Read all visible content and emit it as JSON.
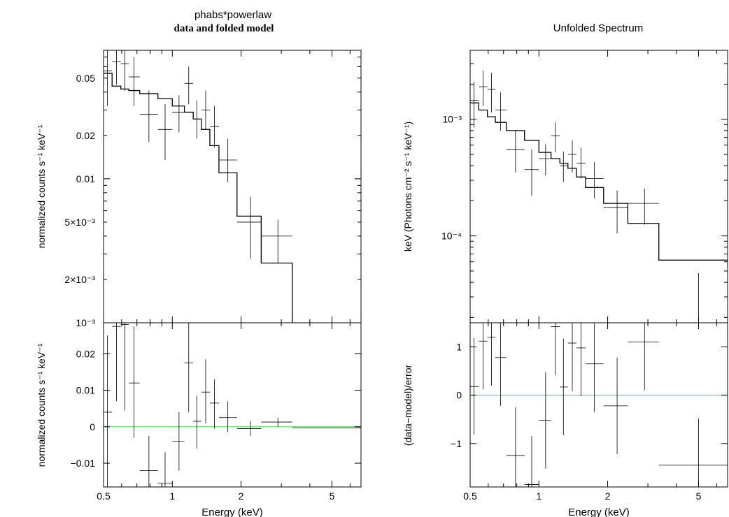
{
  "figure": {
    "left_title": "phabs*powerlaw",
    "left_subtitle": "data and folded model",
    "right_title": "Unfolded Spectrum"
  },
  "chart_data": [
    {
      "type": "scatter",
      "panel": "left-top",
      "ylabel": "normalized counts s⁻¹ keV⁻¹",
      "xlog": true,
      "ylog": true,
      "xlim": [
        0.5,
        6.7
      ],
      "ylim": [
        0.001,
        0.078
      ],
      "xticks": [
        {
          "v": 0.5,
          "t": "0.5"
        },
        {
          "v": 1,
          "t": "1"
        },
        {
          "v": 2,
          "t": "2"
        },
        {
          "v": 5,
          "t": "5"
        }
      ],
      "yticks": [
        {
          "v": 0.001,
          "t": "10⁻³"
        },
        {
          "v": 0.002,
          "t": "2×10⁻³"
        },
        {
          "v": 0.005,
          "t": "5×10⁻³"
        },
        {
          "v": 0.01,
          "t": "0.01"
        },
        {
          "v": 0.02,
          "t": "0.02"
        },
        {
          "v": 0.05,
          "t": "0.05"
        }
      ],
      "points": [
        {
          "x": 0.52,
          "xlo": 0.5,
          "xhi": 0.545,
          "y": 0.056,
          "ylo": 0.032,
          "yhi": 0.078
        },
        {
          "x": 0.57,
          "xlo": 0.545,
          "xhi": 0.595,
          "y": 0.065,
          "ylo": 0.045,
          "yhi": 0.078
        },
        {
          "x": 0.62,
          "xlo": 0.595,
          "xhi": 0.645,
          "y": 0.063,
          "ylo": 0.041,
          "yhi": 0.078
        },
        {
          "x": 0.68,
          "xlo": 0.645,
          "xhi": 0.72,
          "y": 0.051,
          "ylo": 0.032,
          "yhi": 0.07
        },
        {
          "x": 0.79,
          "xlo": 0.72,
          "xhi": 0.865,
          "y": 0.028,
          "ylo": 0.018,
          "yhi": 0.041
        },
        {
          "x": 0.93,
          "xlo": 0.865,
          "xhi": 1.0,
          "y": 0.022,
          "ylo": 0.0135,
          "yhi": 0.033
        },
        {
          "x": 1.07,
          "xlo": 1.0,
          "xhi": 1.13,
          "y": 0.029,
          "ylo": 0.021,
          "yhi": 0.038
        },
        {
          "x": 1.18,
          "xlo": 1.13,
          "xhi": 1.235,
          "y": 0.046,
          "ylo": 0.033,
          "yhi": 0.06
        },
        {
          "x": 1.28,
          "xlo": 1.235,
          "xhi": 1.34,
          "y": 0.026,
          "ylo": 0.019,
          "yhi": 0.035
        },
        {
          "x": 1.4,
          "xlo": 1.34,
          "xhi": 1.46,
          "y": 0.03,
          "ylo": 0.022,
          "yhi": 0.041
        },
        {
          "x": 1.53,
          "xlo": 1.46,
          "xhi": 1.6,
          "y": 0.023,
          "ylo": 0.0165,
          "yhi": 0.032
        },
        {
          "x": 1.75,
          "xlo": 1.6,
          "xhi": 1.92,
          "y": 0.0135,
          "ylo": 0.0095,
          "yhi": 0.019
        },
        {
          "x": 2.2,
          "xlo": 1.92,
          "xhi": 2.45,
          "y": 0.005,
          "ylo": 0.0028,
          "yhi": 0.0075
        },
        {
          "x": 2.9,
          "xlo": 2.45,
          "xhi": 3.35,
          "y": 0.004,
          "ylo": 0.0026,
          "yhi": 0.0052
        }
      ],
      "model_edges": [
        0.5,
        0.545,
        0.595,
        0.645,
        0.72,
        0.865,
        1.0,
        1.13,
        1.235,
        1.34,
        1.46,
        1.6,
        1.92,
        2.45,
        3.35
      ],
      "model_values": [
        0.054,
        0.044,
        0.042,
        0.041,
        0.039,
        0.036,
        0.032,
        0.029,
        0.026,
        0.022,
        0.017,
        0.011,
        0.0055,
        0.0026
      ]
    },
    {
      "type": "scatter",
      "panel": "left-bottom",
      "xlabel": "Energy (keV)",
      "ylabel": "normalized counts s⁻¹ keV⁻¹",
      "xlog": true,
      "xlim": [
        0.5,
        6.7
      ],
      "ylim": [
        -0.0165,
        0.0285
      ],
      "xticks": [
        {
          "v": 0.5,
          "t": "0.5"
        },
        {
          "v": 1,
          "t": "1"
        },
        {
          "v": 2,
          "t": "2"
        },
        {
          "v": 5,
          "t": "5"
        }
      ],
      "yticks": [
        {
          "v": -0.01,
          "t": "−0.01"
        },
        {
          "v": 0,
          "t": "0"
        },
        {
          "v": 0.01,
          "t": "0.01"
        },
        {
          "v": 0.02,
          "t": "0.02"
        }
      ],
      "zero_line": 0,
      "zero_color": "#55dd55",
      "points": [
        {
          "x": 0.52,
          "xlo": 0.5,
          "xhi": 0.545,
          "y": 0.004,
          "ylo": -0.0165,
          "yhi": 0.025
        },
        {
          "x": 0.57,
          "xlo": 0.545,
          "xhi": 0.595,
          "y": 0.0275,
          "ylo": 0.007,
          "yhi": 0.0285
        },
        {
          "x": 0.62,
          "xlo": 0.595,
          "xhi": 0.645,
          "y": 0.028,
          "ylo": 0.0045,
          "yhi": 0.0285
        },
        {
          "x": 0.68,
          "xlo": 0.645,
          "xhi": 0.72,
          "y": 0.012,
          "ylo": -0.003,
          "yhi": 0.0275
        },
        {
          "x": 0.79,
          "xlo": 0.72,
          "xhi": 0.865,
          "y": -0.012,
          "ylo": -0.0165,
          "yhi": -0.0025
        },
        {
          "x": 0.93,
          "xlo": 0.865,
          "xhi": 1.0,
          "y": -0.0155,
          "ylo": -0.0165,
          "yhi": -0.007
        },
        {
          "x": 1.07,
          "xlo": 1.0,
          "xhi": 1.13,
          "y": -0.004,
          "ylo": -0.012,
          "yhi": 0.004
        },
        {
          "x": 1.18,
          "xlo": 1.13,
          "xhi": 1.235,
          "y": 0.0175,
          "ylo": 0.004,
          "yhi": 0.0285
        },
        {
          "x": 1.28,
          "xlo": 1.235,
          "xhi": 1.34,
          "y": 0.0015,
          "ylo": -0.006,
          "yhi": 0.0085
        },
        {
          "x": 1.4,
          "xlo": 1.34,
          "xhi": 1.46,
          "y": 0.0095,
          "ylo": 0.001,
          "yhi": 0.0185
        },
        {
          "x": 1.53,
          "xlo": 1.46,
          "xhi": 1.6,
          "y": 0.0065,
          "ylo": -0.0005,
          "yhi": 0.013
        },
        {
          "x": 1.75,
          "xlo": 1.6,
          "xhi": 1.92,
          "y": 0.0025,
          "ylo": -0.0015,
          "yhi": 0.007
        },
        {
          "x": 2.2,
          "xlo": 1.92,
          "xhi": 2.45,
          "y": -0.0005,
          "ylo": -0.0025,
          "yhi": 0.0015
        },
        {
          "x": 2.9,
          "xlo": 2.45,
          "xhi": 3.35,
          "y": 0.0013,
          "ylo": 0.0,
          "yhi": 0.0025
        },
        {
          "x": 5.0,
          "xlo": 3.35,
          "xhi": 6.7,
          "y": -0.0003,
          "ylo": -0.0003,
          "yhi": -0.0003
        }
      ]
    },
    {
      "type": "scatter",
      "panel": "right-top",
      "title": "Unfolded Spectrum",
      "ylabel": "keV (Photons cm⁻² s⁻¹ keV⁻¹)",
      "xlog": true,
      "ylog": true,
      "xlim": [
        0.5,
        6.7
      ],
      "ylim": [
        1.8e-05,
        0.0039
      ],
      "xticks": [
        {
          "v": 0.5,
          "t": "0.5"
        },
        {
          "v": 1,
          "t": "1"
        },
        {
          "v": 2,
          "t": "2"
        },
        {
          "v": 5,
          "t": "5"
        }
      ],
      "yticks": [
        {
          "v": 0.0001,
          "t": "10⁻⁴"
        },
        {
          "v": 0.001,
          "t": "10⁻³"
        }
      ],
      "points": [
        {
          "x": 0.52,
          "xlo": 0.5,
          "xhi": 0.545,
          "y": 0.00145,
          "ylo": 0.00085,
          "yhi": 0.0021
        },
        {
          "x": 0.57,
          "xlo": 0.545,
          "xhi": 0.595,
          "y": 0.0019,
          "ylo": 0.0013,
          "yhi": 0.0026
        },
        {
          "x": 0.62,
          "xlo": 0.595,
          "xhi": 0.645,
          "y": 0.0018,
          "ylo": 0.00115,
          "yhi": 0.0025
        },
        {
          "x": 0.68,
          "xlo": 0.645,
          "xhi": 0.72,
          "y": 0.0012,
          "ylo": 0.0008,
          "yhi": 0.0017
        },
        {
          "x": 0.79,
          "xlo": 0.72,
          "xhi": 0.865,
          "y": 0.00055,
          "ylo": 0.00035,
          "yhi": 0.0008
        },
        {
          "x": 0.93,
          "xlo": 0.865,
          "xhi": 1.0,
          "y": 0.00037,
          "ylo": 0.00022,
          "yhi": 0.00055
        },
        {
          "x": 1.07,
          "xlo": 1.0,
          "xhi": 1.13,
          "y": 0.00046,
          "ylo": 0.00033,
          "yhi": 0.00061
        },
        {
          "x": 1.18,
          "xlo": 1.13,
          "xhi": 1.235,
          "y": 0.00072,
          "ylo": 0.00052,
          "yhi": 0.00094
        },
        {
          "x": 1.28,
          "xlo": 1.235,
          "xhi": 1.34,
          "y": 0.0004,
          "ylo": 0.00029,
          "yhi": 0.00053
        },
        {
          "x": 1.4,
          "xlo": 1.34,
          "xhi": 1.46,
          "y": 0.0005,
          "ylo": 0.00035,
          "yhi": 0.00066
        },
        {
          "x": 1.53,
          "xlo": 1.46,
          "xhi": 1.6,
          "y": 0.00042,
          "ylo": 0.00031,
          "yhi": 0.00057
        },
        {
          "x": 1.75,
          "xlo": 1.6,
          "xhi": 1.92,
          "y": 0.00031,
          "ylo": 0.00021,
          "yhi": 0.00043
        },
        {
          "x": 2.2,
          "xlo": 1.92,
          "xhi": 2.45,
          "y": 0.000175,
          "ylo": 0.000105,
          "yhi": 0.000245
        },
        {
          "x": 2.9,
          "xlo": 2.45,
          "xhi": 3.35,
          "y": 0.00019,
          "ylo": 0.000125,
          "yhi": 0.000255
        },
        {
          "x": 5.0,
          "xlo": 5.0,
          "xhi": 5.0,
          "y": 1.8e-05,
          "ylo": 1.8e-05,
          "yhi": 4.8e-05
        }
      ],
      "model_edges": [
        0.5,
        0.545,
        0.595,
        0.645,
        0.72,
        0.865,
        1.0,
        1.13,
        1.235,
        1.34,
        1.46,
        1.6,
        1.92,
        2.45,
        3.35,
        6.7
      ],
      "model_values": [
        0.00138,
        0.0012,
        0.00105,
        0.00094,
        0.0008,
        0.00066,
        0.00052,
        0.00046,
        0.00042,
        0.00038,
        0.00032,
        0.00026,
        0.00019,
        0.000128,
        6.2e-05
      ]
    },
    {
      "type": "scatter",
      "panel": "right-bottom",
      "xlabel": "Energy (keV)",
      "ylabel": "(data−model)/error",
      "xlog": true,
      "xlim": [
        0.5,
        6.7
      ],
      "ylim": [
        -1.9,
        1.5
      ],
      "xticks": [
        {
          "v": 0.5,
          "t": "0.5"
        },
        {
          "v": 1,
          "t": "1"
        },
        {
          "v": 2,
          "t": "2"
        },
        {
          "v": 5,
          "t": "5"
        }
      ],
      "yticks": [
        {
          "v": -1,
          "t": "−1"
        },
        {
          "v": 0,
          "t": "0"
        },
        {
          "v": 1,
          "t": "1"
        }
      ],
      "zero_line": 0,
      "zero_color": "#55dd55",
      "points": [
        {
          "x": 0.52,
          "xlo": 0.5,
          "xhi": 0.545,
          "y": 0.18,
          "ylo": -0.82,
          "yhi": 1.18
        },
        {
          "x": 0.57,
          "xlo": 0.545,
          "xhi": 0.595,
          "y": 1.12,
          "ylo": 0.12,
          "yhi": 1.5
        },
        {
          "x": 0.62,
          "xlo": 0.595,
          "xhi": 0.645,
          "y": 1.2,
          "ylo": 0.2,
          "yhi": 1.5
        },
        {
          "x": 0.68,
          "xlo": 0.645,
          "xhi": 0.72,
          "y": 0.78,
          "ylo": -0.22,
          "yhi": 1.5
        },
        {
          "x": 0.79,
          "xlo": 0.72,
          "xhi": 0.865,
          "y": -1.25,
          "ylo": -1.9,
          "yhi": -0.25
        },
        {
          "x": 0.93,
          "xlo": 0.865,
          "xhi": 1.0,
          "y": -1.85,
          "ylo": -1.9,
          "yhi": -0.85
        },
        {
          "x": 1.07,
          "xlo": 1.0,
          "xhi": 1.13,
          "y": -0.52,
          "ylo": -1.52,
          "yhi": 0.48
        },
        {
          "x": 1.18,
          "xlo": 1.13,
          "xhi": 1.235,
          "y": 1.42,
          "ylo": 0.42,
          "yhi": 1.5
        },
        {
          "x": 1.28,
          "xlo": 1.235,
          "xhi": 1.34,
          "y": 0.17,
          "ylo": -0.83,
          "yhi": 1.17
        },
        {
          "x": 1.4,
          "xlo": 1.34,
          "xhi": 1.46,
          "y": 1.08,
          "ylo": 0.08,
          "yhi": 1.5
        },
        {
          "x": 1.53,
          "xlo": 1.46,
          "xhi": 1.6,
          "y": 0.98,
          "ylo": -0.02,
          "yhi": 1.5
        },
        {
          "x": 1.75,
          "xlo": 1.6,
          "xhi": 1.92,
          "y": 0.65,
          "ylo": -0.35,
          "yhi": 1.5
        },
        {
          "x": 2.2,
          "xlo": 1.92,
          "xhi": 2.45,
          "y": -0.22,
          "ylo": -1.22,
          "yhi": 0.78
        },
        {
          "x": 2.9,
          "xlo": 2.45,
          "xhi": 3.35,
          "y": 1.1,
          "ylo": 0.1,
          "yhi": 1.5
        },
        {
          "x": 5.0,
          "xlo": 3.35,
          "xhi": 6.7,
          "y": -1.45,
          "ylo": -1.9,
          "yhi": -0.48
        }
      ]
    }
  ]
}
